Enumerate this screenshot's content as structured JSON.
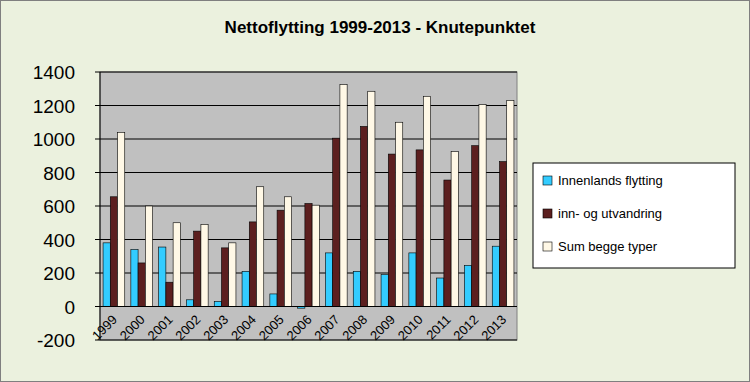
{
  "chart_data": {
    "type": "bar",
    "title": "Nettoflytting 1999-2013 - Knutepunktet",
    "categories": [
      "1999",
      "2000",
      "2001",
      "2002",
      "2003",
      "2004",
      "2005",
      "2006",
      "2007",
      "2008",
      "2009",
      "2010",
      "2011",
      "2012",
      "2013"
    ],
    "series": [
      {
        "name": "Innenlands flytting",
        "color": "#33ccff",
        "values": [
          380,
          340,
          355,
          40,
          30,
          210,
          75,
          -10,
          320,
          210,
          190,
          320,
          170,
          245,
          360
        ]
      },
      {
        "name": "inn- og utvandring",
        "color": "#5c1f1f",
        "values": [
          655,
          260,
          145,
          450,
          350,
          505,
          575,
          615,
          1005,
          1075,
          910,
          935,
          755,
          960,
          865
        ]
      },
      {
        "name": "Sum begge typer",
        "color": "#fff8e6",
        "values": [
          1040,
          600,
          500,
          490,
          380,
          715,
          655,
          605,
          1325,
          1285,
          1100,
          1255,
          925,
          1205,
          1230
        ]
      }
    ],
    "ylim": [
      -200,
      1400
    ],
    "yticks": [
      -200,
      0,
      200,
      400,
      600,
      800,
      1000,
      1200,
      1400
    ],
    "grid": true,
    "legend": "right"
  }
}
